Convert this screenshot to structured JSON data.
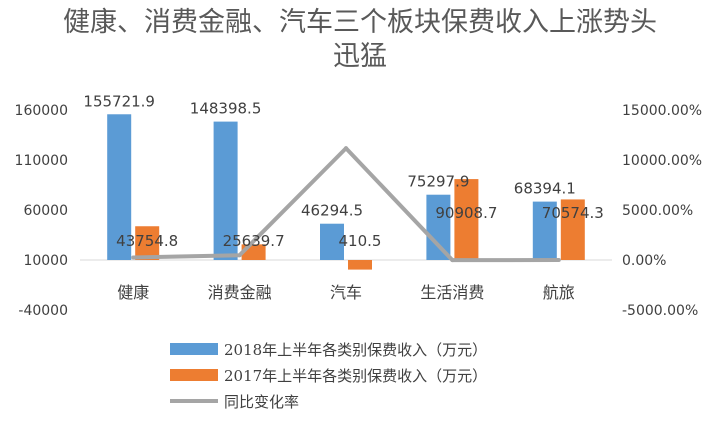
{
  "chart_data": {
    "type": "bar",
    "title": "健康、消费金融、汽车三个板块保费收入上涨势头迅猛",
    "categories": [
      "健康",
      "消费金融",
      "汽车",
      "生活消费",
      "航旅"
    ],
    "series": [
      {
        "name": "2018年上半年各类别保费收入（万元）",
        "type": "bar",
        "axis": "left",
        "values": [
          155721.9,
          148398.5,
          46294.5,
          75297.9,
          68394.1
        ],
        "labels": [
          "155721.9",
          "148398.5",
          "46294.5",
          "75297.9",
          "68394.1"
        ]
      },
      {
        "name": "2017年上半年各类别保费收入（万元）",
        "type": "bar",
        "axis": "left",
        "values": [
          43754.8,
          25639.7,
          410.5,
          90908.7,
          70574.3
        ],
        "labels": [
          "43754.8",
          "25639.7",
          "410.5",
          "90908.7",
          "70574.3"
        ]
      },
      {
        "name": "同比变化率",
        "type": "line",
        "axis": "right",
        "values": [
          255.9,
          478.8,
          11177.6,
          -17.2,
          -3.1
        ]
      }
    ],
    "y_left": {
      "min": -40000,
      "max": 160000,
      "ticks": [
        -40000,
        10000,
        60000,
        110000,
        160000
      ],
      "tick_labels": [
        "-40000",
        "10000",
        "60000",
        "110000",
        "160000"
      ]
    },
    "y_right": {
      "min": -5000,
      "max": 15000,
      "ticks": [
        -5000,
        0,
        5000,
        10000,
        15000
      ],
      "tick_labels": [
        "-5000.00%",
        "0.00%",
        "5000.00%",
        "10000.00%",
        "15000.00%"
      ]
    },
    "grid": false,
    "legend_position": "bottom"
  },
  "colors": {
    "bar_2018": "#5b9bd5",
    "bar_2017": "#ed7d31",
    "line": "#a5a5a5",
    "axis": "#d9d9d9",
    "text": "#404040"
  }
}
